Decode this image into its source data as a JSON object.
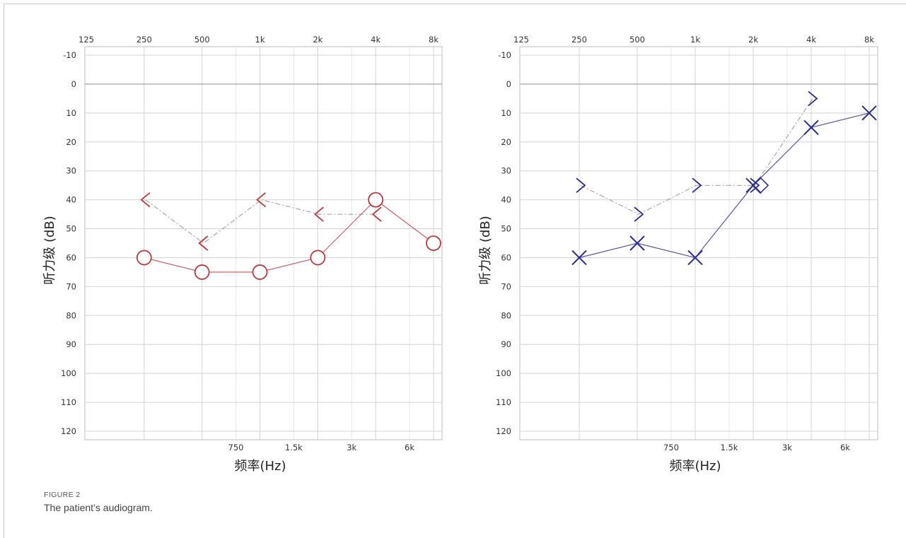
{
  "caption": {
    "label": "FIGURE 2",
    "text": "The patient’s audiogram."
  },
  "colors": {
    "right_ear": "#c0383b",
    "left_ear": "#2c2c8f",
    "grid": "#d3d3d3",
    "connector": "#888888"
  },
  "chart_data": [
    {
      "type": "line",
      "title": "",
      "xlabel": "频率(Hz)",
      "ylabel": "听力级 (dB)",
      "x_top_ticks": [
        "125",
        "250",
        "500",
        "1k",
        "2k",
        "4k",
        "8k"
      ],
      "x_bottom_ticks": [
        "750",
        "1.5k",
        "3k",
        "6k"
      ],
      "y_ticks": [
        "-10",
        "0",
        "10",
        "20",
        "30",
        "40",
        "50",
        "60",
        "70",
        "80",
        "90",
        "100",
        "110",
        "120"
      ],
      "ylim": [
        -10,
        120
      ],
      "y_inverted": true,
      "x_scale": "log",
      "grid": true,
      "series": [
        {
          "marker": "circle",
          "color": "#c0383b",
          "line": "solid",
          "x": [
            250,
            500,
            1000,
            2000,
            4000,
            8000
          ],
          "y": [
            60,
            65,
            65,
            60,
            40,
            55
          ]
        },
        {
          "marker": "bracket-left",
          "color": "#c0383b",
          "line": "dashed",
          "x": [
            250,
            500,
            1000,
            2000,
            4000
          ],
          "y": [
            40,
            55,
            40,
            45,
            45
          ]
        }
      ]
    },
    {
      "type": "line",
      "title": "",
      "xlabel": "频率(Hz)",
      "ylabel": "听力级 (dB)",
      "x_top_ticks": [
        "125",
        "250",
        "500",
        "1k",
        "2k",
        "4k",
        "8k"
      ],
      "x_bottom_ticks": [
        "750",
        "1.5k",
        "3k",
        "6k"
      ],
      "y_ticks": [
        "-10",
        "0",
        "10",
        "20",
        "30",
        "40",
        "50",
        "60",
        "70",
        "80",
        "90",
        "100",
        "110",
        "120"
      ],
      "ylim": [
        -10,
        120
      ],
      "y_inverted": true,
      "x_scale": "log",
      "grid": true,
      "series": [
        {
          "marker": "cross",
          "color": "#2c2c8f",
          "line": "solid",
          "x": [
            250,
            500,
            1000,
            2000,
            4000,
            8000
          ],
          "y": [
            60,
            55,
            60,
            35,
            15,
            10
          ]
        },
        {
          "marker": "bracket-right",
          "color": "#2c2c8f",
          "line": "dashed",
          "x": [
            250,
            500,
            1000,
            2000,
            4000
          ],
          "y": [
            35,
            45,
            35,
            35,
            5
          ]
        }
      ]
    }
  ]
}
